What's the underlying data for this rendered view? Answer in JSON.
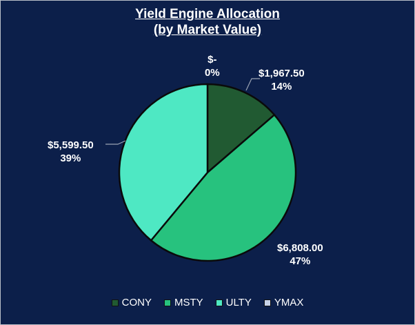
{
  "chart_data": {
    "type": "pie",
    "title_line1": "Yield Engine Allocation",
    "title_line2": "(by Market Value)",
    "legend_position": "bottom",
    "slices": [
      {
        "name": "CONY",
        "value": 1967.5,
        "value_label": "$1,967.50",
        "percent_label": "14%",
        "color": "#215a32"
      },
      {
        "name": "MSTY",
        "value": 6808.0,
        "value_label": "$6,808.00",
        "percent_label": "47%",
        "color": "#27c27e"
      },
      {
        "name": "ULTY",
        "value": 5599.5,
        "value_label": "$5,599.50",
        "percent_label": "39%",
        "color": "#4ee8c3"
      },
      {
        "name": "YMAX",
        "value": 0,
        "value_label": "$-",
        "percent_label": "0%",
        "color": "#c7d2e8"
      }
    ]
  }
}
